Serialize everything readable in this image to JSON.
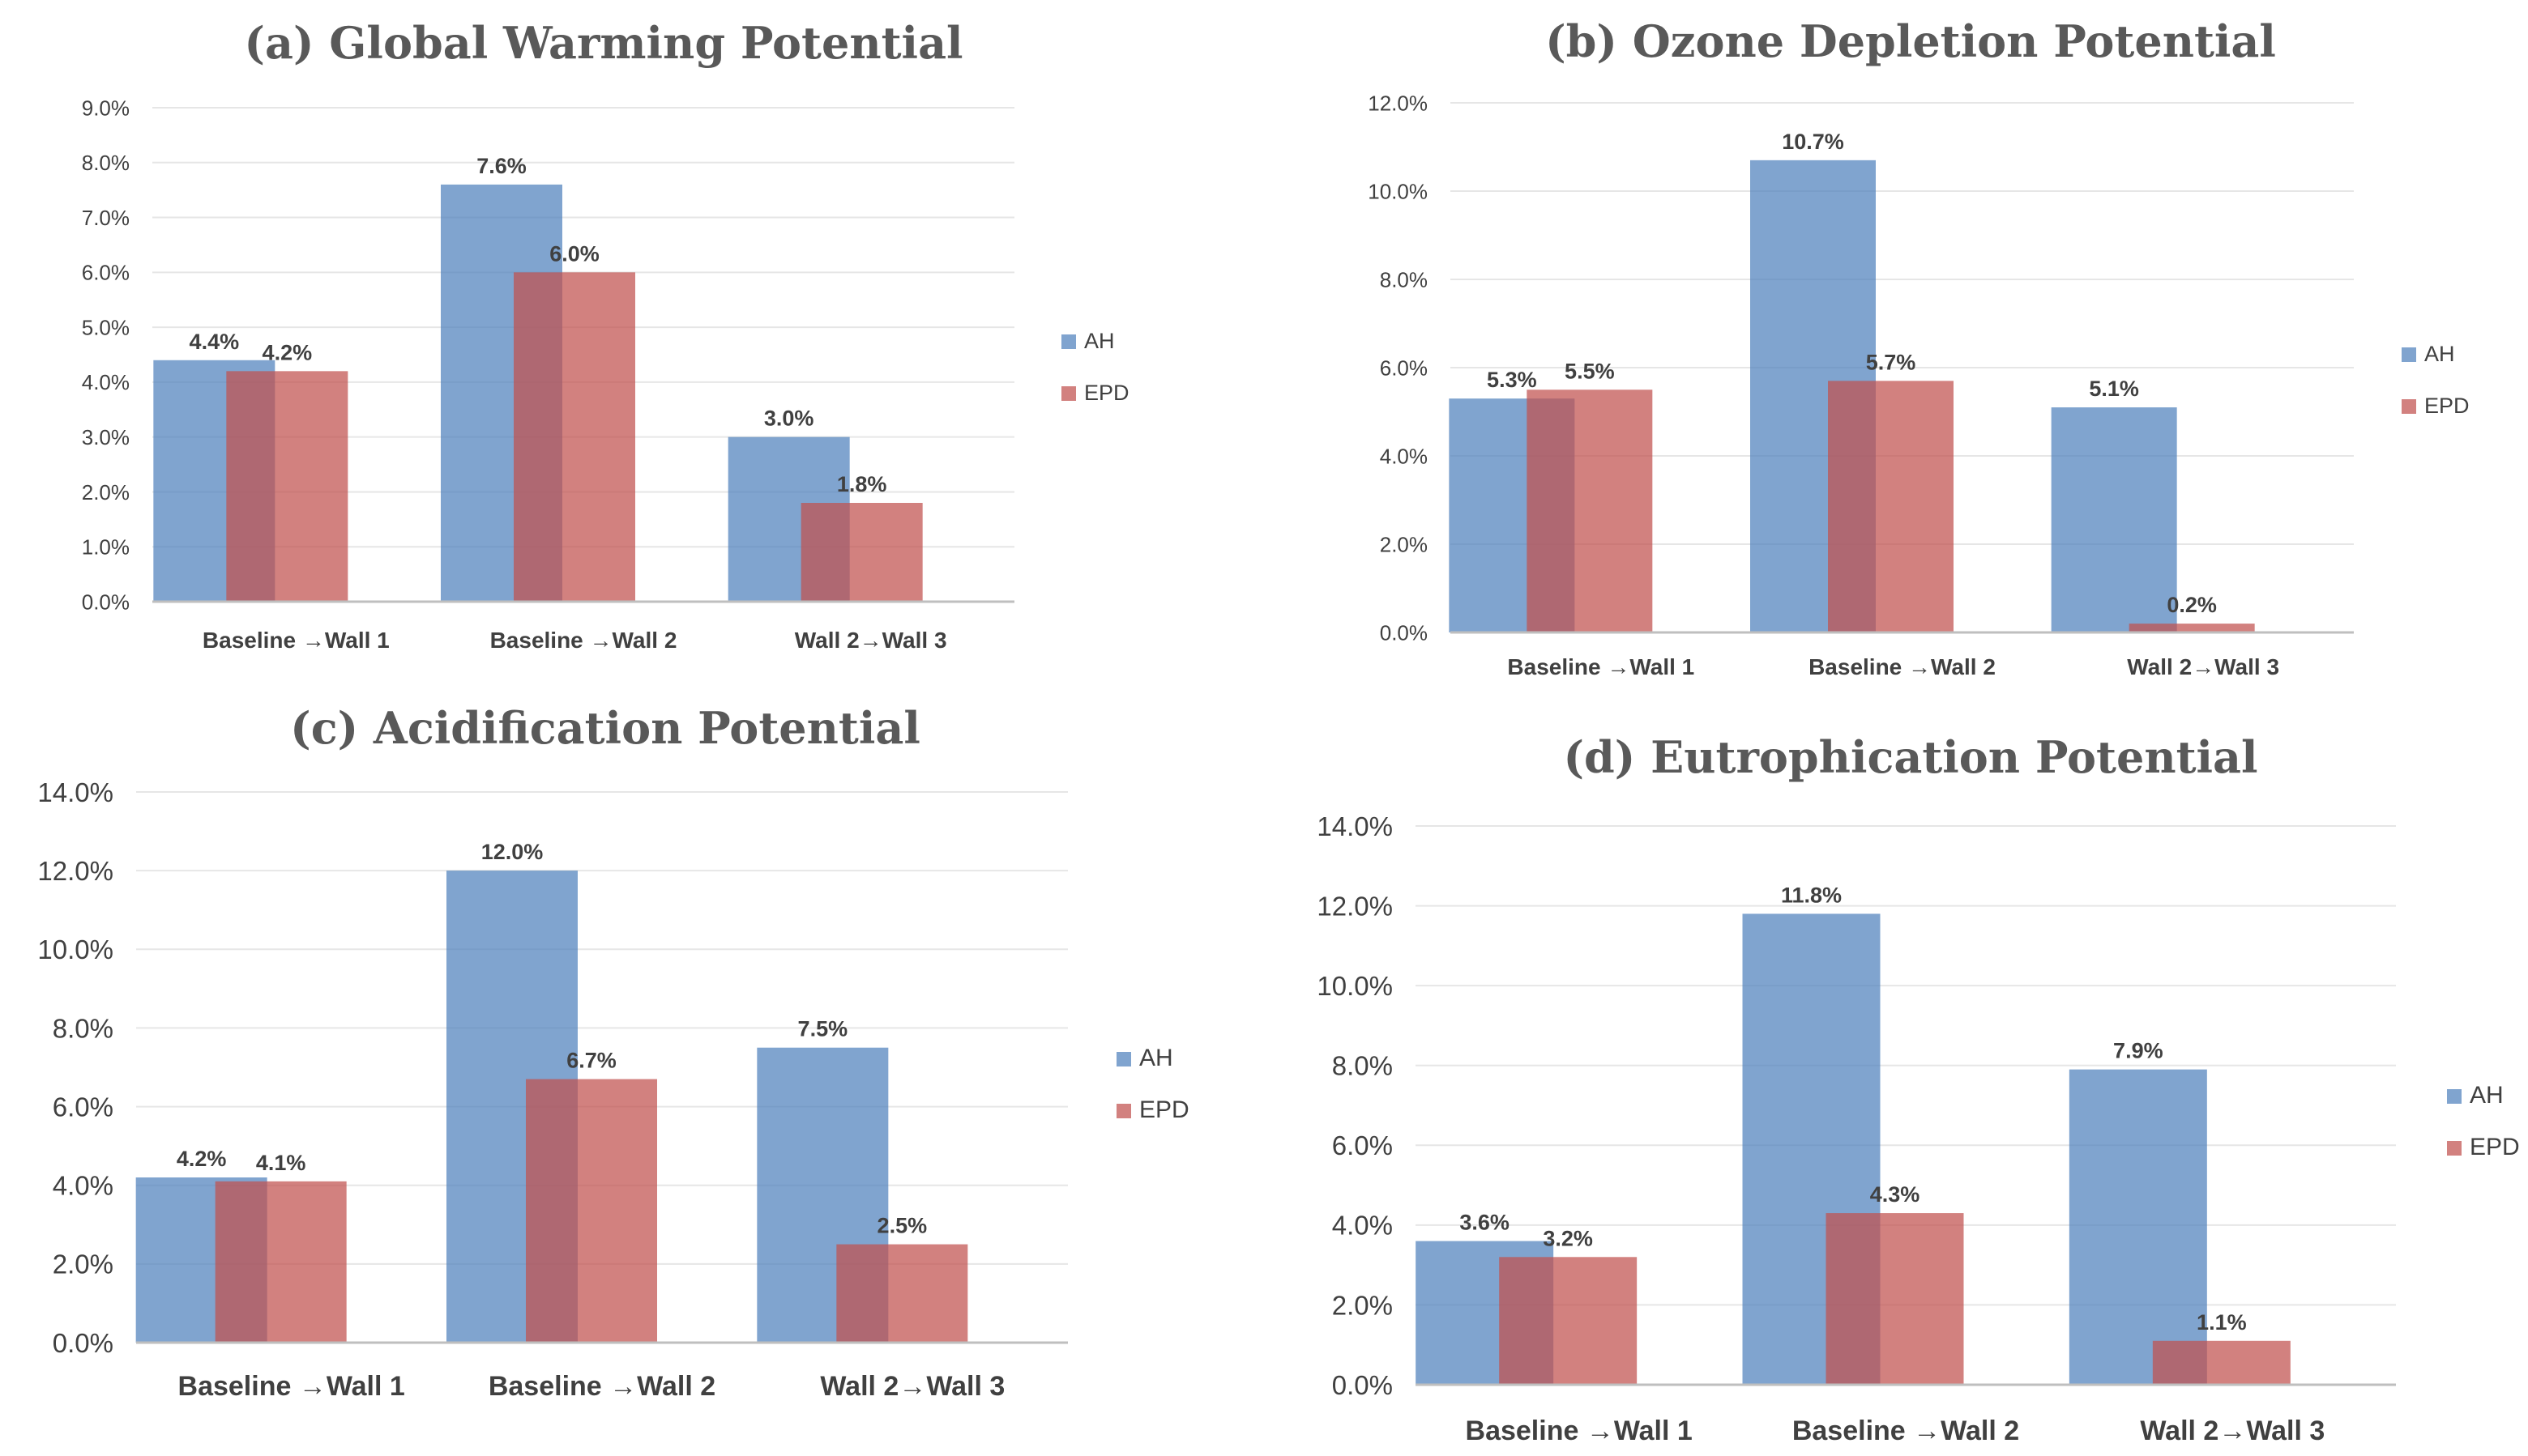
{
  "chart_data": [
    {
      "type": "bar",
      "title": "(a) Global Warming Potential",
      "categories": [
        "Baseline →Wall 1",
        "Baseline →Wall 2",
        "Wall 2→Wall 3"
      ],
      "series": [
        {
          "name": "AH",
          "values": [
            4.4,
            7.6,
            3.0
          ],
          "labels": [
            "4.4%",
            "7.6%",
            "3.0%"
          ],
          "color": "#4f81bd"
        },
        {
          "name": "EPD",
          "values": [
            4.2,
            6.0,
            1.8
          ],
          "labels": [
            "4.2%",
            "6.0%",
            "1.8%"
          ],
          "color": "#c0504d"
        }
      ],
      "ylim": [
        0,
        9
      ],
      "yticks": [
        "0.0%",
        "1.0%",
        "2.0%",
        "3.0%",
        "4.0%",
        "5.0%",
        "6.0%",
        "7.0%",
        "8.0%",
        "9.0%"
      ],
      "xlabel": "",
      "ylabel": "",
      "grid": true,
      "legend": "right"
    },
    {
      "type": "bar",
      "title": "(b) Ozone Depletion Potential",
      "categories": [
        "Baseline →Wall 1",
        "Baseline →Wall 2",
        "Wall 2→Wall 3"
      ],
      "series": [
        {
          "name": "AH",
          "values": [
            5.3,
            10.7,
            5.1
          ],
          "labels": [
            "5.3%",
            "10.7%",
            "5.1%"
          ],
          "color": "#4f81bd"
        },
        {
          "name": "EPD",
          "values": [
            5.5,
            5.7,
            0.2
          ],
          "labels": [
            "5.5%",
            "5.7%",
            "0.2%"
          ],
          "color": "#c0504d"
        }
      ],
      "ylim": [
        0,
        12
      ],
      "yticks": [
        "0.0%",
        "2.0%",
        "4.0%",
        "6.0%",
        "8.0%",
        "10.0%",
        "12.0%"
      ],
      "xlabel": "",
      "ylabel": "",
      "grid": true,
      "legend": "right"
    },
    {
      "type": "bar",
      "title": "(c) Acidification Potential",
      "categories": [
        "Baseline →Wall 1",
        "Baseline →Wall 2",
        "Wall 2→Wall 3"
      ],
      "series": [
        {
          "name": "AH",
          "values": [
            4.2,
            12.0,
            7.5
          ],
          "labels": [
            "4.2%",
            "12.0%",
            "7.5%"
          ],
          "color": "#4f81bd"
        },
        {
          "name": "EPD",
          "values": [
            4.1,
            6.7,
            2.5
          ],
          "labels": [
            "4.1%",
            "6.7%",
            "2.5%"
          ],
          "color": "#c0504d"
        }
      ],
      "ylim": [
        0,
        14
      ],
      "yticks": [
        "0.0%",
        "2.0%",
        "4.0%",
        "6.0%",
        "8.0%",
        "10.0%",
        "12.0%",
        "14.0%"
      ],
      "xlabel": "",
      "ylabel": "",
      "grid": true,
      "legend": "right"
    },
    {
      "type": "bar",
      "title": "(d) Eutrophication Potential",
      "categories": [
        "Baseline →Wall 1",
        "Baseline →Wall 2",
        "Wall 2→Wall 3"
      ],
      "series": [
        {
          "name": "AH",
          "values": [
            3.6,
            11.8,
            7.9
          ],
          "labels": [
            "3.6%",
            "11.8%",
            "7.9%"
          ],
          "color": "#4f81bd"
        },
        {
          "name": "EPD",
          "values": [
            3.2,
            4.3,
            1.1
          ],
          "labels": [
            "3.2%",
            "4.3%",
            "1.1%"
          ],
          "color": "#c0504d"
        }
      ],
      "ylim": [
        0,
        14
      ],
      "yticks": [
        "0.0%",
        "2.0%",
        "4.0%",
        "6.0%",
        "8.0%",
        "10.0%",
        "12.0%",
        "14.0%"
      ],
      "xlabel": "",
      "ylabel": "",
      "grid": true,
      "legend": "right"
    }
  ]
}
